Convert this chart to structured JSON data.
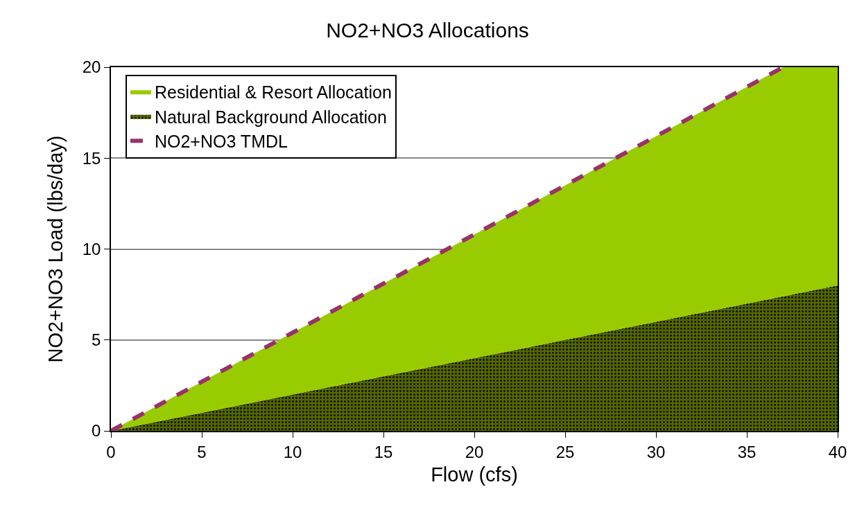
{
  "chart_data": {
    "type": "area",
    "title": "NO2+NO3 Allocations",
    "xlabel": "Flow (cfs)",
    "ylabel": "NO2+NO3 Load (lbs/day)",
    "x": [
      0,
      10,
      20,
      30,
      37,
      40
    ],
    "stacked": true,
    "series": [
      {
        "name": "Natural Background Allocation",
        "color": "#556b00",
        "values": [
          0,
          2,
          4,
          6,
          7.4,
          8
        ]
      },
      {
        "name": "Residential & Resort Allocation",
        "color": "#99cc00",
        "values": [
          0,
          3.4,
          6.8,
          10.2,
          12.6,
          12
        ]
      },
      {
        "name": "NO2+NO3 TMDL",
        "type": "line",
        "color": "#993366",
        "line_style": "dashed",
        "values": [
          0,
          5.4,
          10.8,
          16.2,
          20,
          null
        ]
      }
    ],
    "xlim": [
      0,
      40
    ],
    "xticks": [
      0,
      5,
      10,
      15,
      20,
      25,
      30,
      35,
      40
    ],
    "ylim": [
      0,
      20
    ],
    "yticks": [
      0,
      5,
      10,
      15,
      20
    ],
    "grid": "y",
    "legend": "top left"
  }
}
